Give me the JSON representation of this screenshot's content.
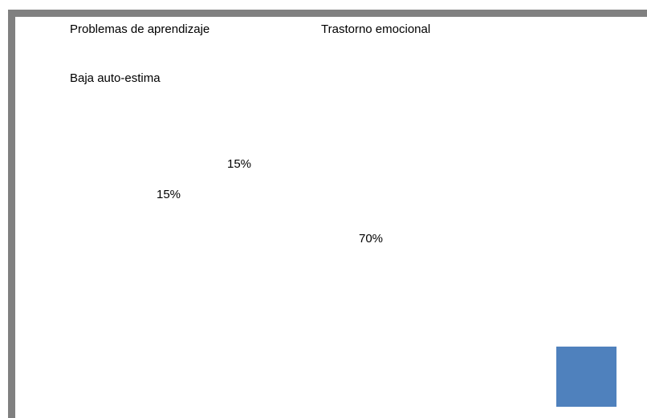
{
  "chart_data": {
    "type": "pie",
    "categories": [
      "Problemas de aprendizaje",
      "Trastorno emocional",
      "Baja auto-estima"
    ],
    "values": [
      70,
      15,
      15
    ],
    "value_labels": [
      "70%",
      "15%",
      "15%"
    ]
  }
}
